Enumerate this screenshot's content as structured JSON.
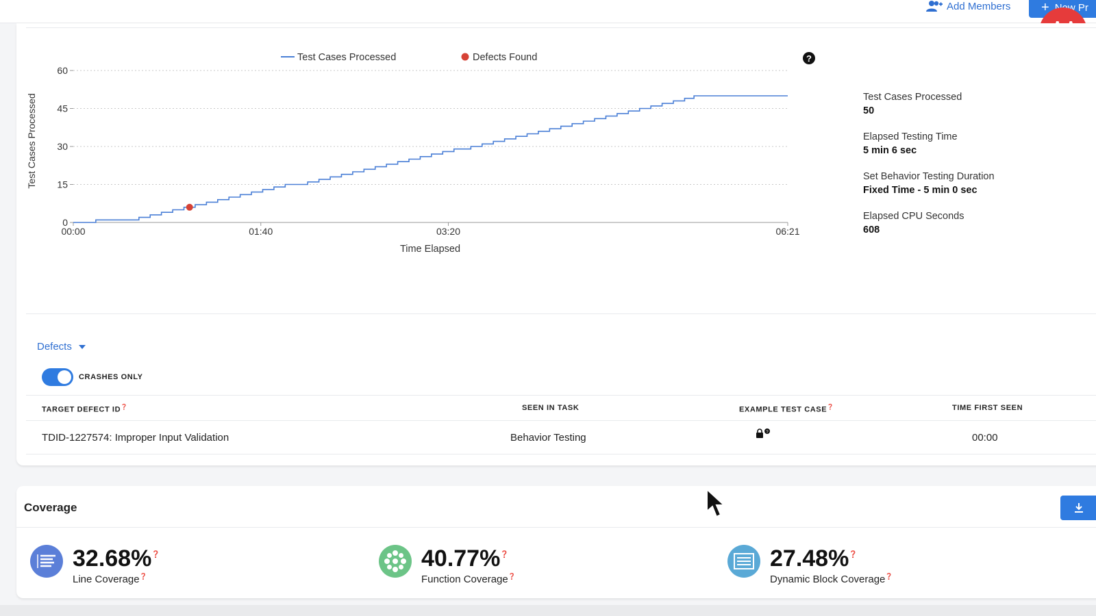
{
  "header": {
    "add_members_label": "Add Members",
    "new_button_label": "New Pr"
  },
  "legend": {
    "series1": "Test Cases Processed",
    "series2": "Defects Found"
  },
  "stats": [
    {
      "label": "Test Cases Processed",
      "value": "50"
    },
    {
      "label": "Elapsed Testing Time",
      "value": "5 min 6 sec"
    },
    {
      "label": "Set Behavior Testing Duration",
      "value": "Fixed Time - 5 min 0 sec"
    },
    {
      "label": "Elapsed CPU Seconds",
      "value": "608"
    }
  ],
  "chart_data": {
    "type": "line",
    "xlabel": "Time Elapsed",
    "ylabel": "Test Cases Processed",
    "x_ticks": [
      "00:00",
      "01:40",
      "03:20",
      "06:21"
    ],
    "x_tick_seconds": [
      0,
      100,
      200,
      381
    ],
    "y_ticks": [
      0,
      15,
      30,
      45,
      60
    ],
    "ylim": [
      0,
      60
    ],
    "xlim_seconds": [
      0,
      381
    ],
    "grid": "horizontal dotted",
    "legend_position": "top",
    "series": [
      {
        "name": "Test Cases Processed",
        "color": "#4a7fd6",
        "points": [
          [
            0,
            0
          ],
          [
            12,
            1
          ],
          [
            35,
            2
          ],
          [
            41,
            3
          ],
          [
            47,
            4
          ],
          [
            53,
            5
          ],
          [
            59,
            6
          ],
          [
            65,
            7
          ],
          [
            71,
            8
          ],
          [
            77,
            9
          ],
          [
            83,
            10
          ],
          [
            89,
            11
          ],
          [
            95,
            12
          ],
          [
            101,
            13
          ],
          [
            107,
            14
          ],
          [
            113,
            15
          ],
          [
            125,
            16
          ],
          [
            131,
            17
          ],
          [
            137,
            18
          ],
          [
            143,
            19
          ],
          [
            149,
            20
          ],
          [
            155,
            21
          ],
          [
            161,
            22
          ],
          [
            167,
            23
          ],
          [
            173,
            24
          ],
          [
            179,
            25
          ],
          [
            185,
            26
          ],
          [
            191,
            27
          ],
          [
            197,
            28
          ],
          [
            203,
            29
          ],
          [
            212,
            30
          ],
          [
            218,
            31
          ],
          [
            224,
            32
          ],
          [
            230,
            33
          ],
          [
            236,
            34
          ],
          [
            242,
            35
          ],
          [
            248,
            36
          ],
          [
            254,
            37
          ],
          [
            260,
            38
          ],
          [
            266,
            39
          ],
          [
            272,
            40
          ],
          [
            278,
            41
          ],
          [
            284,
            42
          ],
          [
            290,
            43
          ],
          [
            296,
            44
          ],
          [
            302,
            45
          ],
          [
            308,
            46
          ],
          [
            314,
            47
          ],
          [
            320,
            48
          ],
          [
            326,
            49
          ],
          [
            331,
            50
          ],
          [
            381,
            50
          ]
        ]
      },
      {
        "name": "Defects Found",
        "color": "#d64235",
        "points": [
          [
            62,
            6
          ]
        ]
      }
    ]
  },
  "defects": {
    "dropdown_label": "Defects",
    "toggle_label": "CRASHES ONLY",
    "toggle_on": true,
    "columns": [
      "TARGET DEFECT ID",
      "SEEN IN TASK",
      "EXAMPLE TEST CASE",
      "TIME FIRST SEEN"
    ],
    "rows": [
      {
        "id": "TDID-1227574: Improper Input Validation",
        "task": "Behavior Testing",
        "time": "00:00"
      }
    ]
  },
  "coverage": {
    "title": "Coverage",
    "metrics": [
      {
        "value": "32.68%",
        "label": "Line Coverage",
        "color": "#5b7fd8",
        "icon": "line-coverage-icon"
      },
      {
        "value": "40.77%",
        "label": "Function Coverage",
        "color": "#6cc487",
        "icon": "function-coverage-icon"
      },
      {
        "value": "27.48%",
        "label": "Dynamic Block Coverage",
        "color": "#5aa9d6",
        "icon": "block-coverage-icon"
      }
    ]
  },
  "colors": {
    "accent": "#2f7be0",
    "link": "#2f6fd1",
    "brand": "#e63b3b"
  }
}
